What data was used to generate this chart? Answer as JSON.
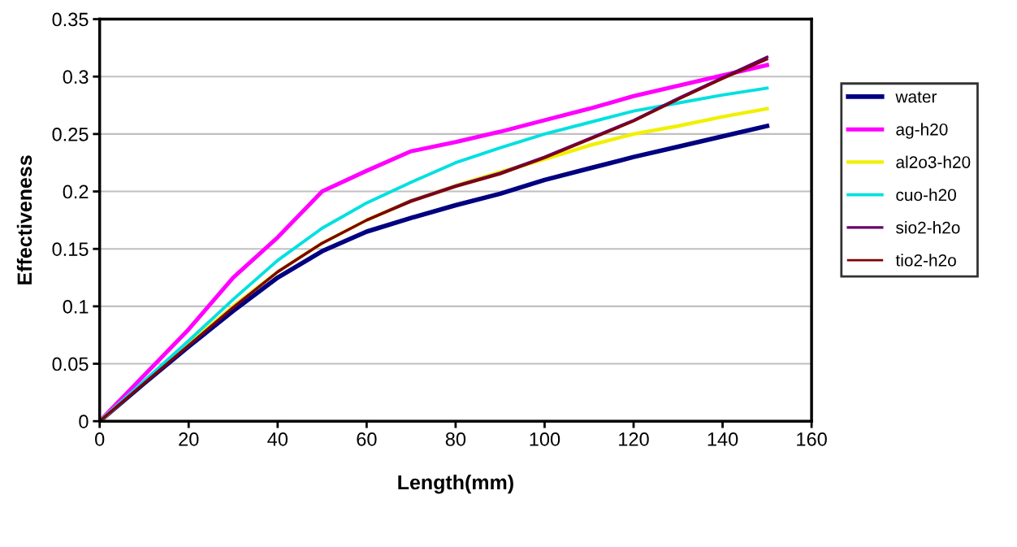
{
  "chart_data": {
    "type": "line",
    "xlabel": "Length(mm)",
    "ylabel": "Effectiveness",
    "xlim": [
      0,
      160
    ],
    "xticks": [
      0,
      20,
      40,
      60,
      80,
      100,
      120,
      140,
      160
    ],
    "ylim": [
      0,
      0.35
    ],
    "yticks": [
      0,
      0.05,
      0.1,
      0.15,
      0.2,
      0.25,
      0.3,
      0.35
    ],
    "grid": "y",
    "legend": "right",
    "marker": "none",
    "x": [
      0,
      10,
      20,
      30,
      40,
      50,
      60,
      70,
      80,
      90,
      100,
      110,
      120,
      130,
      140,
      150
    ],
    "series": [
      {
        "name": "water",
        "color": "#000080",
        "values": [
          0,
          0.033,
          0.065,
          0.096,
          0.125,
          0.148,
          0.165,
          0.177,
          0.188,
          0.198,
          0.21,
          0.22,
          0.23,
          0.239,
          0.248,
          0.257
        ]
      },
      {
        "name": "ag-h20",
        "color": "#ff00ff",
        "values": [
          0,
          0.04,
          0.08,
          0.125,
          0.16,
          0.2,
          0.218,
          0.235,
          0.243,
          0.252,
          0.262,
          0.272,
          0.283,
          0.292,
          0.301,
          0.31
        ]
      },
      {
        "name": "al2o3-h20",
        "color": "#f0f000",
        "values": [
          0,
          0.034,
          0.067,
          0.1,
          0.13,
          0.155,
          0.175,
          0.192,
          0.205,
          0.217,
          0.228,
          0.24,
          0.25,
          0.257,
          0.265,
          0.272
        ]
      },
      {
        "name": "cuo-h20",
        "color": "#00e0e0",
        "values": [
          0,
          0.035,
          0.07,
          0.106,
          0.14,
          0.168,
          0.19,
          0.208,
          0.225,
          0.238,
          0.25,
          0.26,
          0.27,
          0.277,
          0.284,
          0.29
        ]
      },
      {
        "name": "sio2-h2o",
        "color": "#660066",
        "values": [
          0,
          0.033,
          0.066,
          0.099,
          0.13,
          0.155,
          0.175,
          0.192,
          0.205,
          0.216,
          0.23,
          0.246,
          0.262,
          0.281,
          0.299,
          0.317
        ]
      },
      {
        "name": "tio2-h2o",
        "color": "#800000",
        "values": [
          0,
          0.033,
          0.066,
          0.099,
          0.13,
          0.155,
          0.175,
          0.191,
          0.204,
          0.215,
          0.229,
          0.245,
          0.261,
          0.28,
          0.298,
          0.315
        ]
      }
    ]
  }
}
